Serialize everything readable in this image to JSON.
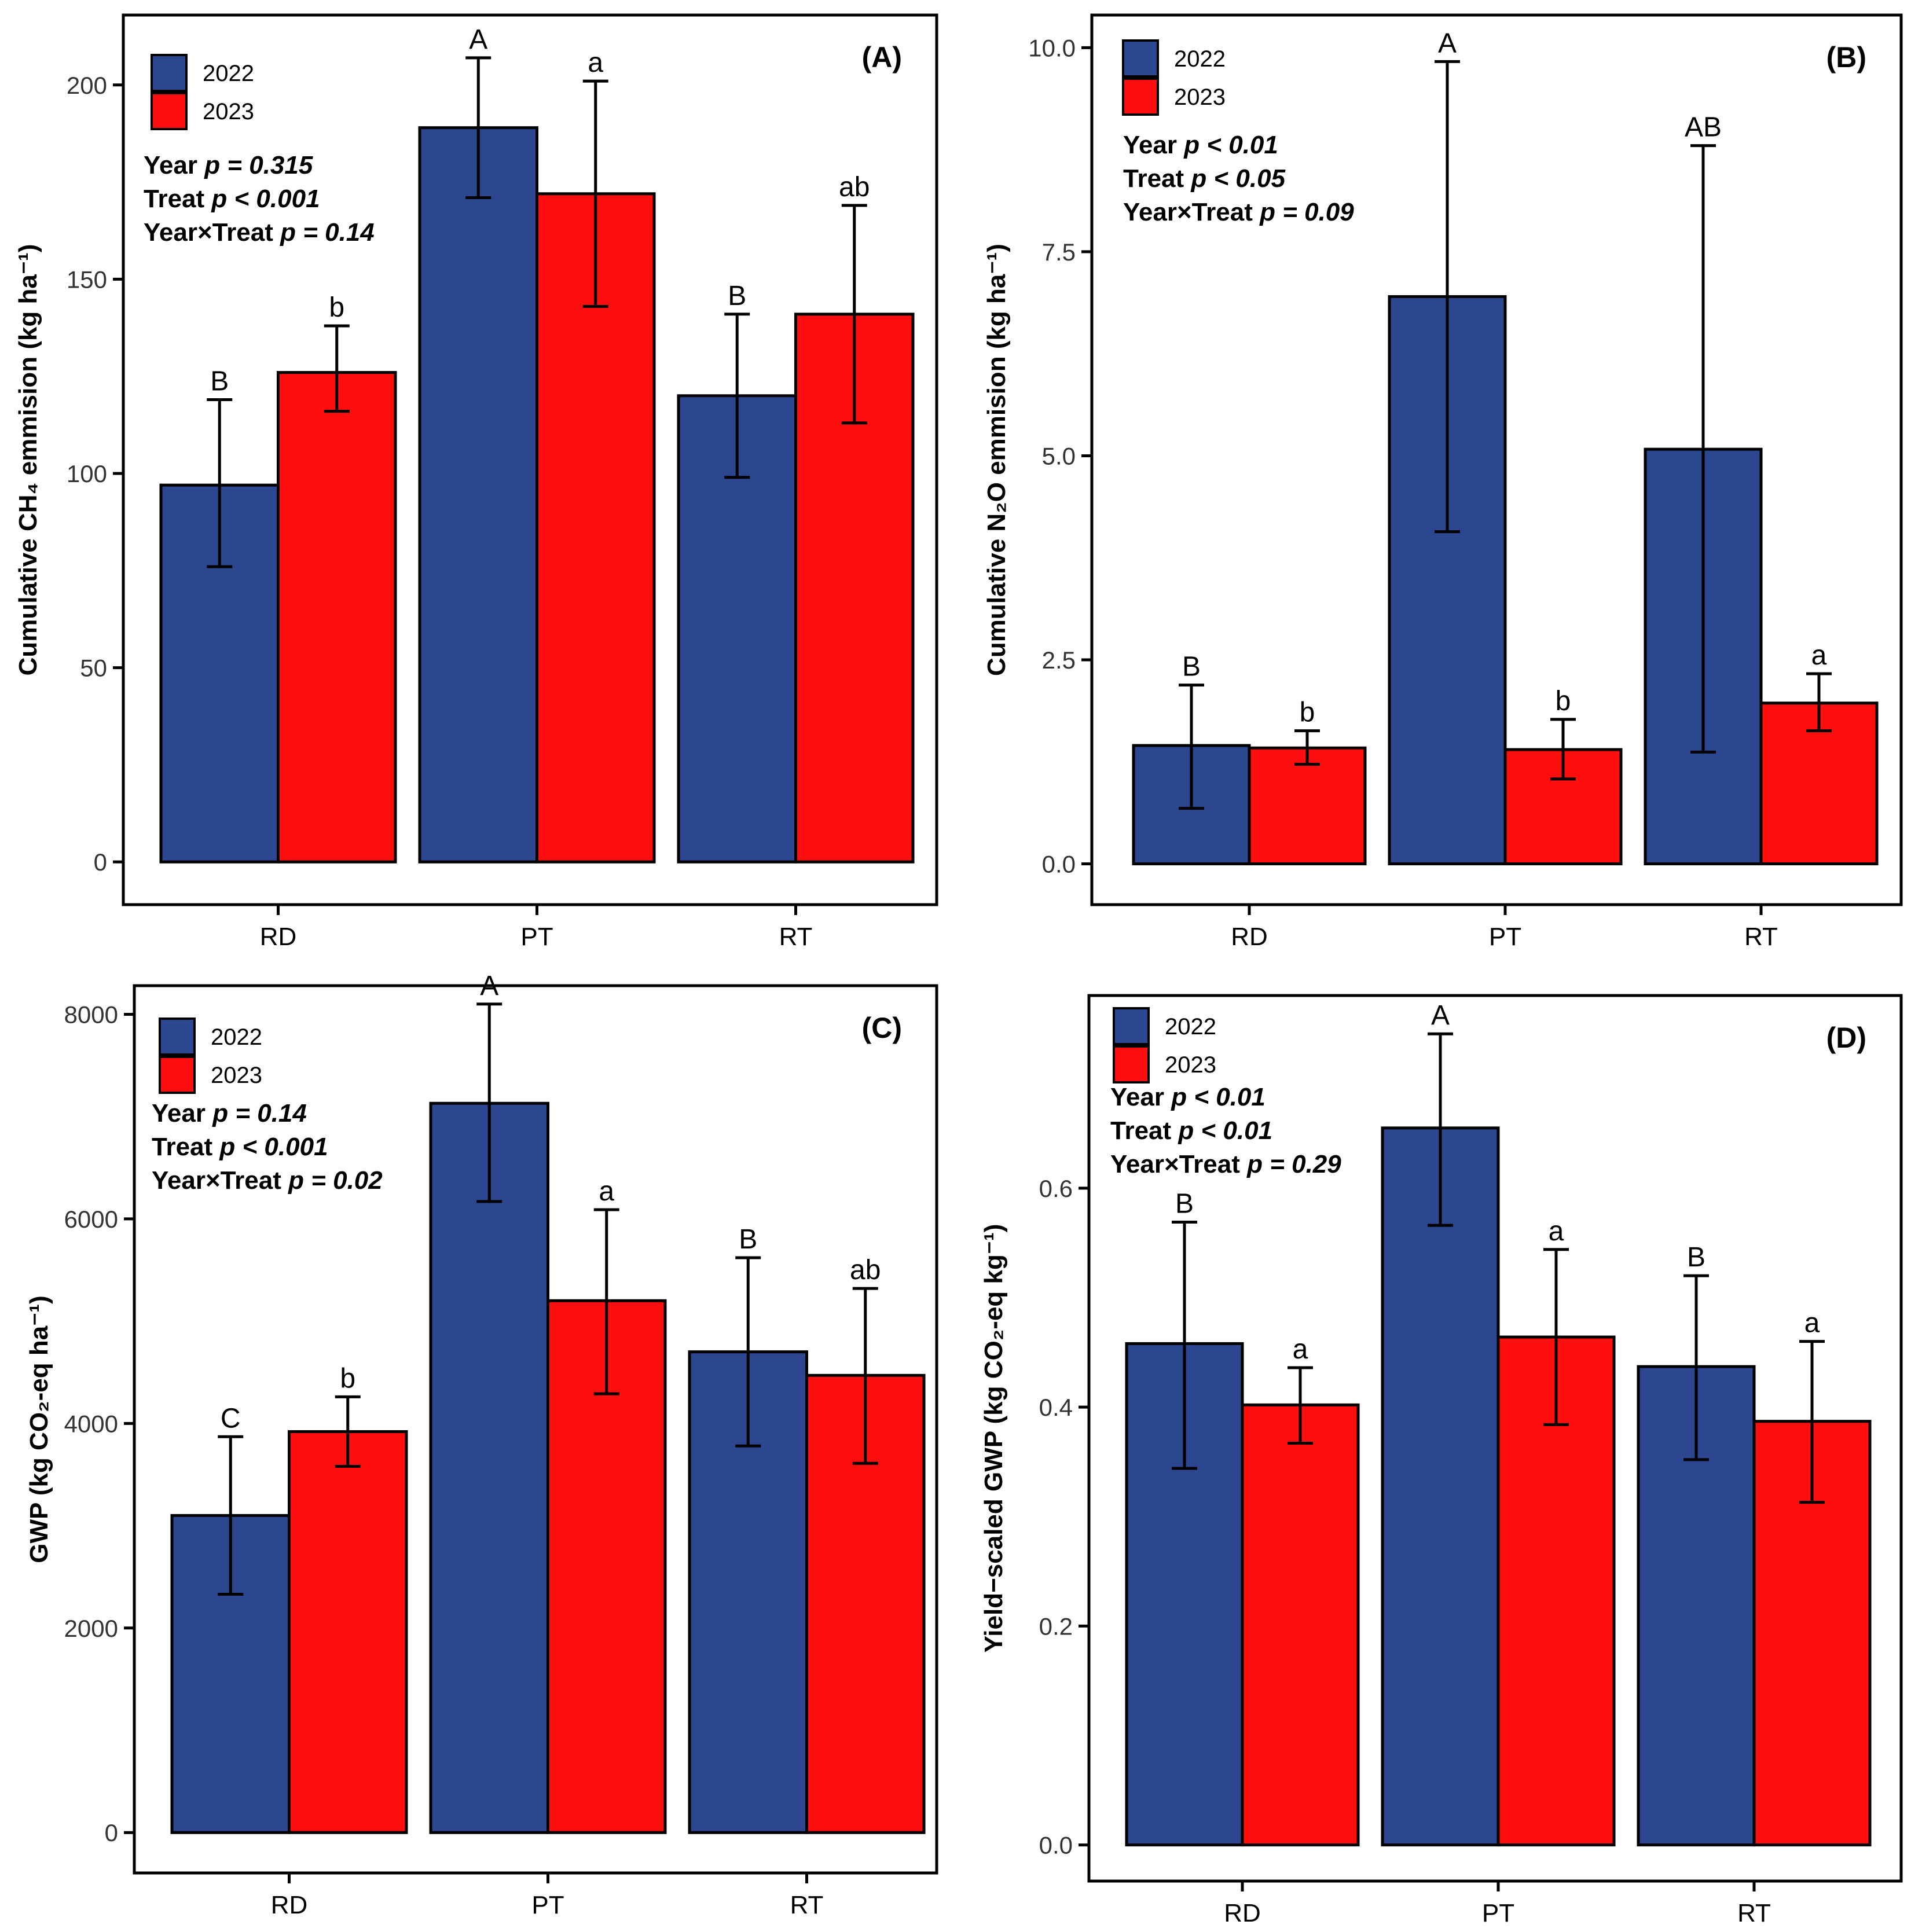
{
  "colors": {
    "y2022": "#2D4690",
    "y2023": "#FE0E0E",
    "axis": "#000000"
  },
  "chart_data": [
    {
      "type": "bar",
      "panel_label": "(A)",
      "categories": [
        "RD",
        "PT",
        "RT"
      ],
      "series": [
        {
          "name": "2022",
          "values": [
            97,
            189,
            120
          ],
          "err_low": [
            76,
            171,
            99
          ],
          "err_high": [
            119,
            207,
            141
          ],
          "letters": [
            "B",
            "A",
            "B"
          ]
        },
        {
          "name": "2023",
          "values": [
            126,
            172,
            141
          ],
          "err_low": [
            116,
            143,
            113
          ],
          "err_high": [
            138,
            201,
            169
          ],
          "letters": [
            "b",
            "a",
            "ab"
          ]
        }
      ],
      "ylabel": "Cumulative CH₄ emmision (kg ha⁻¹)",
      "xlabel": "",
      "ylim": [
        -11,
        218
      ],
      "yticks": [
        0,
        50,
        100,
        150,
        200
      ],
      "ytick_labels": [
        "0",
        "50",
        "100",
        "150",
        "200"
      ],
      "legend": [
        {
          "series": 0,
          "label": "2022"
        },
        {
          "series": 1,
          "label": "2023"
        }
      ],
      "stats": [
        {
          "lead": "Year",
          "stat": "p = 0.315"
        },
        {
          "lead": "Treat",
          "stat": "p < 0.001"
        },
        {
          "lead": "Year×Treat",
          "stat": "p = 0.14"
        }
      ]
    },
    {
      "type": "bar",
      "panel_label": "(B)",
      "categories": [
        "RD",
        "PT",
        "RT"
      ],
      "series": [
        {
          "name": "2022",
          "values": [
            1.45,
            6.95,
            5.08
          ],
          "err_low": [
            0.68,
            4.07,
            1.37
          ],
          "err_high": [
            2.19,
            9.83,
            8.8
          ],
          "letters": [
            "B",
            "A",
            "AB"
          ]
        },
        {
          "name": "2023",
          "values": [
            1.42,
            1.4,
            1.97
          ],
          "err_low": [
            1.22,
            1.04,
            1.63
          ],
          "err_high": [
            1.63,
            1.77,
            2.33
          ],
          "letters": [
            "b",
            "b",
            "a"
          ]
        }
      ],
      "ylabel": "Cumulative N₂O emmision (kg ha⁻¹)",
      "xlabel": "",
      "ylim": [
        -0.5,
        10.4
      ],
      "yticks": [
        0,
        2.5,
        5,
        7.5,
        10
      ],
      "ytick_labels": [
        "0.0",
        "2.5",
        "5.0",
        "7.5",
        "10.0"
      ],
      "legend": [
        {
          "series": 0,
          "label": "2022"
        },
        {
          "series": 1,
          "label": "2023"
        }
      ],
      "stats": [
        {
          "lead": "Year",
          "stat": "p < 0.01"
        },
        {
          "lead": "Treat",
          "stat": "p < 0.05"
        },
        {
          "lead": "Year×Treat",
          "stat": "p = 0.09"
        }
      ]
    },
    {
      "type": "bar",
      "panel_label": "(C)",
      "categories": [
        "RD",
        "PT",
        "RT"
      ],
      "series": [
        {
          "name": "2022",
          "values": [
            3100,
            7130,
            4700
          ],
          "err_low": [
            2330,
            6170,
            3780
          ],
          "err_high": [
            3870,
            8100,
            5620
          ],
          "letters": [
            "C",
            "A",
            "B"
          ]
        },
        {
          "name": "2023",
          "values": [
            3920,
            5200,
            4470
          ],
          "err_low": [
            3580,
            4290,
            3610
          ],
          "err_high": [
            4260,
            6090,
            5320
          ],
          "letters": [
            "b",
            "a",
            "ab"
          ]
        }
      ],
      "ylabel": "GWP (kg CO₂-eq ha⁻¹)",
      "xlabel": "",
      "ylim": [
        -395,
        8280
      ],
      "yticks": [
        0,
        2000,
        4000,
        6000,
        8000
      ],
      "ytick_labels": [
        "0",
        "2000",
        "4000",
        "6000",
        "8000"
      ],
      "legend": [
        {
          "series": 0,
          "label": "2022"
        },
        {
          "series": 1,
          "label": "2023"
        }
      ],
      "stats": [
        {
          "lead": "Year",
          "stat": "p = 0.14"
        },
        {
          "lead": "Treat",
          "stat": "p < 0.001"
        },
        {
          "lead": "Year×Treat",
          "stat": "p = 0.02"
        }
      ]
    },
    {
      "type": "bar",
      "panel_label": "(D)",
      "categories": [
        "RD",
        "PT",
        "RT"
      ],
      "series": [
        {
          "name": "2022",
          "values": [
            0.458,
            0.655,
            0.437
          ],
          "err_low": [
            0.344,
            0.566,
            0.352
          ],
          "err_high": [
            0.569,
            0.741,
            0.52
          ],
          "letters": [
            "B",
            "A",
            "B"
          ]
        },
        {
          "name": "2023",
          "values": [
            0.402,
            0.464,
            0.387
          ],
          "err_low": [
            0.367,
            0.384,
            0.313
          ],
          "err_high": [
            0.436,
            0.544,
            0.46
          ],
          "letters": [
            "a",
            "a",
            "a"
          ]
        }
      ],
      "ylabel": "Yield−scaled GWP (kg CO₂-eq kg⁻¹)",
      "xlabel": "",
      "ylim": [
        -0.033,
        0.776
      ],
      "yticks": [
        0,
        0.2,
        0.4,
        0.6
      ],
      "ytick_labels": [
        "0.0",
        "0.2",
        "0.4",
        "0.6"
      ],
      "legend": [
        {
          "series": 0,
          "label": "2022"
        },
        {
          "series": 1,
          "label": "2023"
        }
      ],
      "stats": [
        {
          "lead": "Year",
          "stat": "p < 0.01"
        },
        {
          "lead": "Treat",
          "stat": "p < 0.01"
        },
        {
          "lead": "Year×Treat",
          "stat": "p = 0.29"
        }
      ]
    }
  ]
}
